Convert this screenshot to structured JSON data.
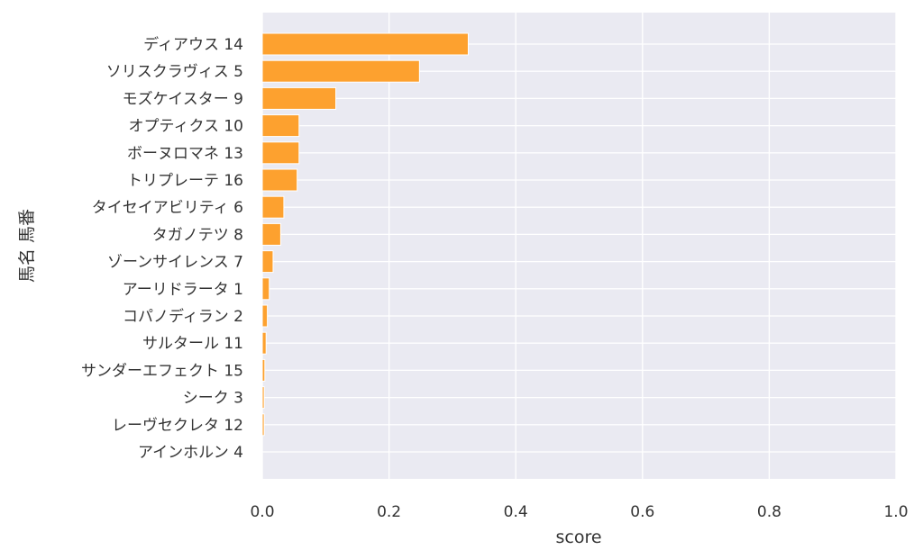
{
  "chart_data": {
    "type": "bar",
    "orientation": "horizontal",
    "xlabel": "score",
    "ylabel": "馬名 馬番",
    "xlim": [
      0.0,
      1.0
    ],
    "xticks": [
      "0.0",
      "0.2",
      "0.4",
      "0.6",
      "0.8",
      "1.0"
    ],
    "grid": true,
    "colors": {
      "bar": "#fda12f",
      "plot_bg": "#eaeaf2",
      "grid": "#ffffff"
    },
    "categories": [
      "ディアウス 14",
      "ソリスクラヴィス 5",
      "モズケイスター 9",
      "オプティクス 10",
      "ボーヌロマネ 13",
      "トリプレーテ 16",
      "タイセイアビリティ 6",
      "タガノテツ 8",
      "ゾーンサイレンス 7",
      "アーリドラータ 1",
      "コパノディラン 2",
      "サルタール 11",
      "サンダーエフェクト 15",
      "シーク 3",
      "レーヴセクレタ 12",
      "アインホルン 4"
    ],
    "values": [
      0.325,
      0.248,
      0.116,
      0.058,
      0.058,
      0.055,
      0.034,
      0.029,
      0.017,
      0.011,
      0.008,
      0.006,
      0.004,
      0.003,
      0.003,
      0.0
    ]
  }
}
